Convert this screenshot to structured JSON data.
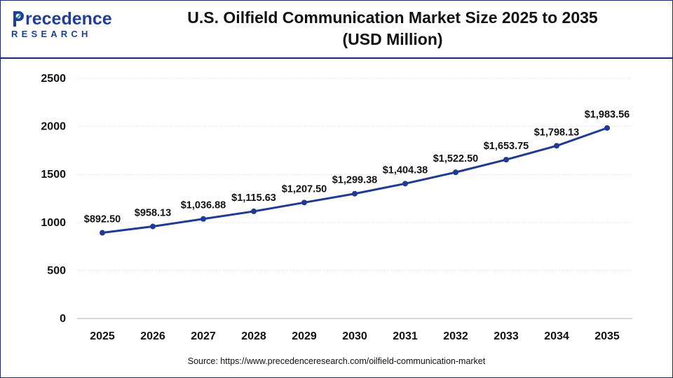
{
  "header": {
    "logo_word": "recedence",
    "logo_sub": "RESEARCH",
    "title_line1": "U.S. Oilfield Communication Market Size 2025 to 2035",
    "title_line2": "(USD Million)"
  },
  "source": "Source: https://www.precedenceresearch.com/oilfield-communication-market",
  "colors": {
    "line": "#1f3a93",
    "marker": "#1f3a93",
    "brand": "#1f3f95",
    "logo_accent": "#1e90c8",
    "border": "#1a2a6c"
  },
  "chart_data": {
    "type": "line",
    "title": "U.S. Oilfield Communication Market Size 2025 to 2035 (USD Million)",
    "xlabel": "",
    "ylabel": "",
    "categories": [
      "2025",
      "2026",
      "2027",
      "2028",
      "2029",
      "2030",
      "2031",
      "2032",
      "2033",
      "2034",
      "2035"
    ],
    "values": [
      892.5,
      958.13,
      1036.88,
      1115.63,
      1207.5,
      1299.38,
      1404.38,
      1522.5,
      1653.75,
      1798.13,
      1983.56
    ],
    "data_labels": [
      "$892.50",
      "$958.13",
      "$1,036.88",
      "$1,115.63",
      "$1,207.50",
      "$1,299.38",
      "$1,404.38",
      "$1,522.50",
      "$1,653.75",
      "$1,798.13",
      "$1,983.56"
    ],
    "yticks": [
      "0",
      "500",
      "1000",
      "1500",
      "2000",
      "2500"
    ],
    "ylim": [
      0,
      2500
    ],
    "grid": true,
    "legend": "none"
  }
}
